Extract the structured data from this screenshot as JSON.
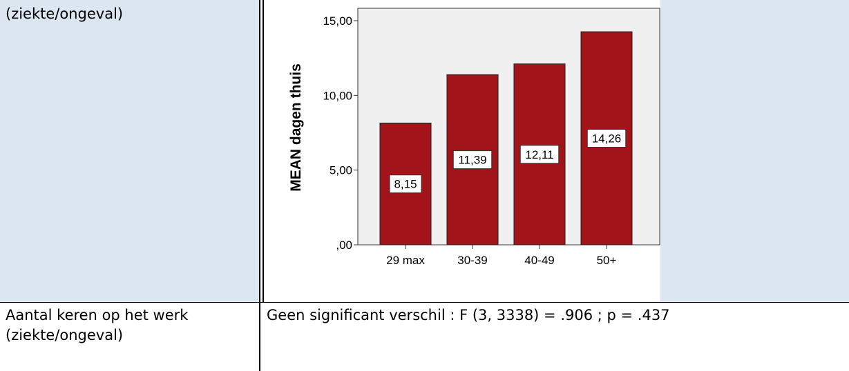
{
  "table": {
    "row1_label": "(ziekte/ongeval)",
    "row2_label_line1": "Aantal keren op het werk",
    "row2_label_line2": "(ziekte/ongeval)",
    "row2_result": "Geen significant verschil : F (3, 3338) = .906 ; p = .437"
  },
  "colors": {
    "cell_background": "#dce6f1",
    "plot_background": "#f0f0f0",
    "bar_fill": "#a0141a"
  },
  "chart_data": {
    "type": "bar",
    "categories": [
      "29 max",
      "30-39",
      "40-49",
      "50+"
    ],
    "values": [
      8.15,
      11.39,
      12.11,
      14.26
    ],
    "value_labels": [
      "8,15",
      "11,39",
      "12,11",
      "14,26"
    ],
    "title": "",
    "xlabel": "",
    "ylabel": "MEAN dagen thuis",
    "ylim": [
      0,
      15
    ],
    "yticks": [
      0,
      5,
      10,
      15
    ],
    "ytick_labels": [
      ",00",
      "5,00",
      "10,00",
      "15,00"
    ],
    "grid": false,
    "legend": "none"
  }
}
